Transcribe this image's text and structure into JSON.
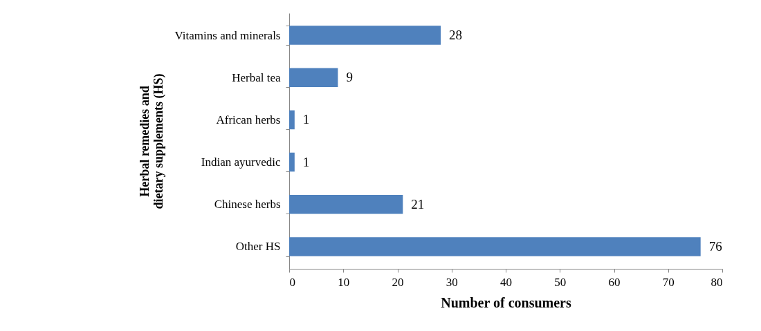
{
  "chart_data": {
    "type": "bar",
    "orientation": "horizontal",
    "categories": [
      "Vitamins and minerals",
      "Herbal tea",
      "African herbs",
      "Indian ayurvedic",
      "Chinese herbs",
      "Other HS"
    ],
    "values": [
      28,
      9,
      1,
      1,
      21,
      76
    ],
    "color": "#4f81bd",
    "xlim": [
      0,
      80
    ],
    "xticks": [
      0,
      10,
      20,
      30,
      40,
      50,
      60,
      70,
      80
    ],
    "xlabel": "Number of consumers",
    "ylabel": "Herbal remedies and dietary supplements (HS)",
    "data_labels": true,
    "grid": false
  }
}
